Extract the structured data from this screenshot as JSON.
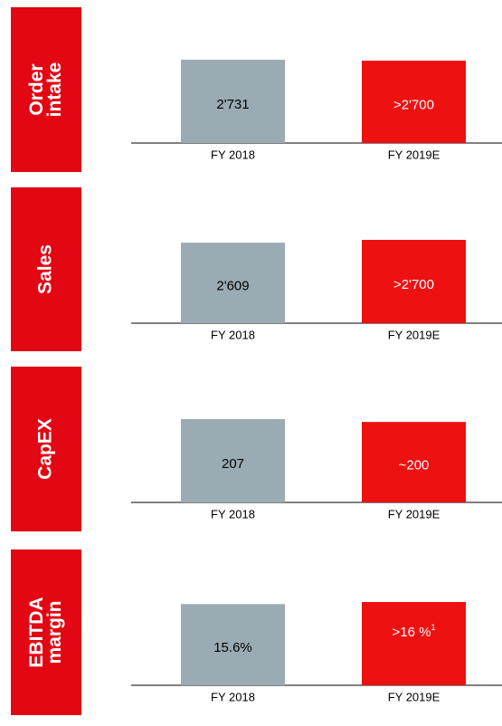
{
  "chart_data": [
    {
      "type": "bar",
      "title": "Order intake",
      "categories": [
        "FY 2018",
        "FY 2019E"
      ],
      "values": [
        2731,
        2700
      ],
      "value_labels": [
        "2'731",
        ">2'700"
      ],
      "colors": [
        "#9aabb3",
        "#ee1111"
      ]
    },
    {
      "type": "bar",
      "title": "Sales",
      "categories": [
        "FY 2018",
        "FY 2019E"
      ],
      "values": [
        2609,
        2700
      ],
      "value_labels": [
        "2'609",
        ">2'700"
      ],
      "colors": [
        "#9aabb3",
        "#ee1111"
      ]
    },
    {
      "type": "bar",
      "title": "CapEX",
      "categories": [
        "FY 2018",
        "FY 2019E"
      ],
      "values": [
        207,
        200
      ],
      "value_labels": [
        "207",
        "~200"
      ],
      "colors": [
        "#9aabb3",
        "#ee1111"
      ]
    },
    {
      "type": "bar",
      "title": "EBITDA margin",
      "categories": [
        "FY 2018",
        "FY 2019E"
      ],
      "values": [
        15.6,
        16
      ],
      "value_labels": [
        "15.6%",
        ">16 %"
      ],
      "footnote": "1",
      "colors": [
        "#9aabb3",
        "#ee1111"
      ]
    }
  ]
}
